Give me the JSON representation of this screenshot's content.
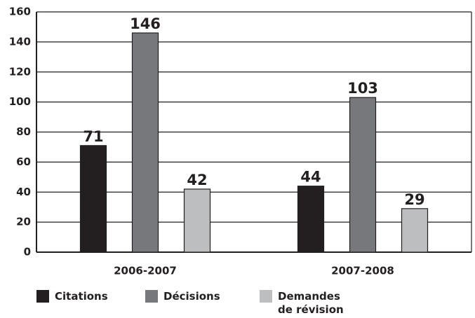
{
  "chart_data": {
    "type": "bar",
    "categories": [
      "2006-2007",
      "2007-2008"
    ],
    "series": [
      {
        "name": "Citations",
        "color": "#231f20",
        "values": [
          71,
          44
        ]
      },
      {
        "name": "Décisions",
        "color": "#77787b",
        "values": [
          146,
          103
        ]
      },
      {
        "name": "Demandes de révision",
        "color": "#bcbec0",
        "values": [
          42,
          29
        ]
      }
    ],
    "ylim": [
      0,
      160
    ],
    "yticks": [
      0,
      20,
      40,
      60,
      80,
      100,
      120,
      140,
      160
    ],
    "grid": true,
    "legend": "bottom"
  }
}
